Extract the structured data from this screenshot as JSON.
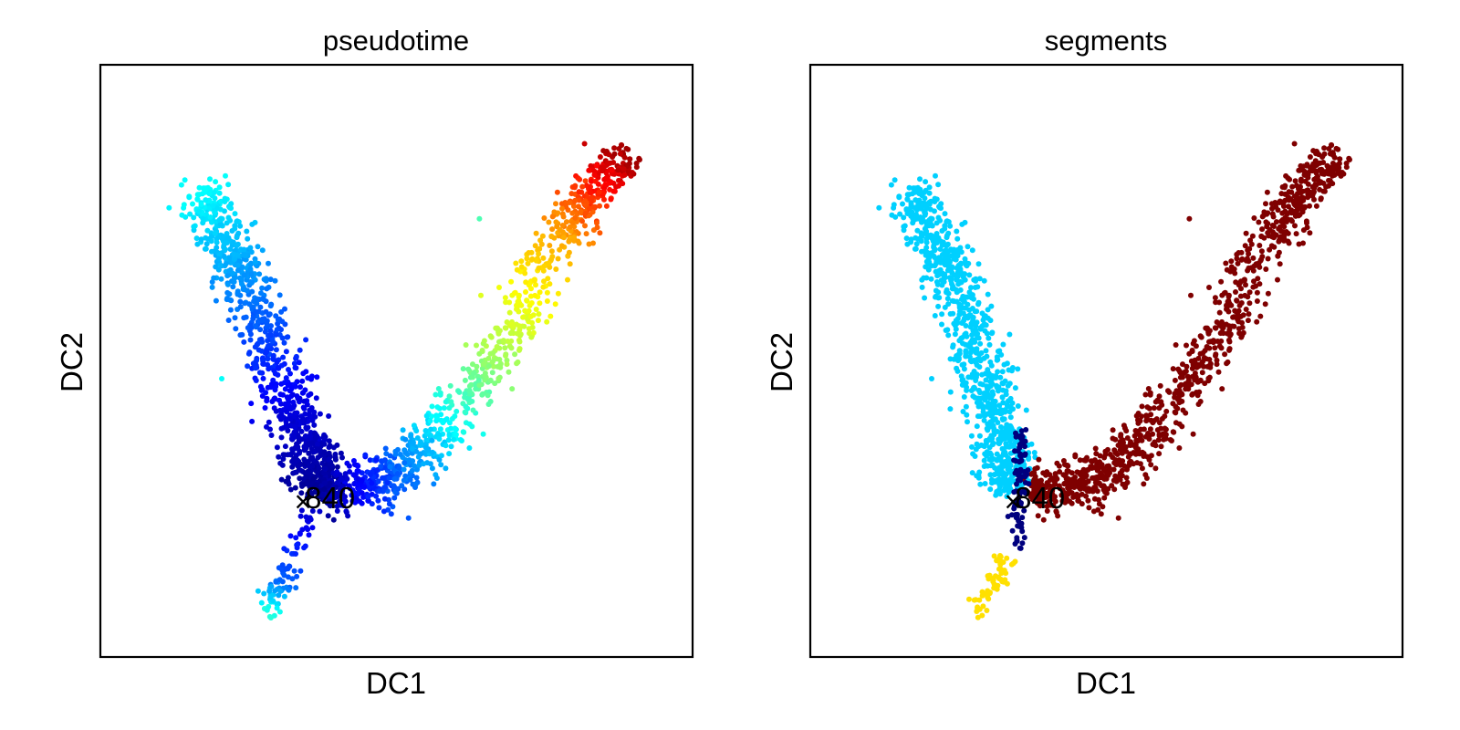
{
  "chart_data": [
    {
      "type": "scatter",
      "title": "pseudotime",
      "xlabel": "DC1",
      "ylabel": "DC2",
      "color_by": "pseudotime",
      "colormap": "jet",
      "grid": false,
      "legend": "none",
      "ticks": "none",
      "xlim": [
        0,
        1
      ],
      "ylim": [
        0,
        1
      ],
      "annotation": {
        "text": "840",
        "marker": "x",
        "x": 0.37,
        "y": 0.27
      },
      "branches": [
        {
          "name": "left-arm",
          "path": [
            [
              0.17,
              0.79
            ],
            [
              0.24,
              0.64
            ],
            [
              0.33,
              0.41
            ],
            [
              0.37,
              0.28
            ]
          ],
          "pseudotime": [
            0.38,
            0.27,
            0.09,
            0.02
          ],
          "n": 900,
          "spread": 0.022
        },
        {
          "name": "right-arm",
          "path": [
            [
              0.37,
              0.28
            ],
            [
              0.5,
              0.3
            ],
            [
              0.66,
              0.49
            ],
            [
              0.78,
              0.72
            ],
            [
              0.89,
              0.85
            ]
          ],
          "pseudotime": [
            0.02,
            0.22,
            0.52,
            0.72,
            0.97
          ],
          "n": 1000,
          "spread": 0.02
        },
        {
          "name": "bottom-arm",
          "path": [
            [
              0.36,
              0.26
            ],
            [
              0.31,
              0.13
            ],
            [
              0.28,
              0.07
            ]
          ],
          "pseudotime": [
            0.06,
            0.22,
            0.42
          ],
          "n": 90,
          "spread": 0.01
        }
      ],
      "outliers": [
        {
          "x": 0.64,
          "y": 0.74,
          "pseudotime": 0.45
        },
        {
          "x": 0.205,
          "y": 0.47,
          "pseudotime": 0.38
        }
      ]
    },
    {
      "type": "scatter",
      "title": "segments",
      "xlabel": "DC1",
      "ylabel": "DC2",
      "color_by": "segments",
      "grid": false,
      "legend": "none",
      "ticks": "none",
      "xlim": [
        0,
        1
      ],
      "ylim": [
        0,
        1
      ],
      "annotation": {
        "text": "840",
        "marker": "x",
        "x": 0.37,
        "y": 0.27
      },
      "segment_colors": [
        "#00d0ff",
        "#7f0000",
        "#00007f",
        "#ffe000"
      ],
      "branches": [
        {
          "name": "left-arm",
          "path": [
            [
              0.17,
              0.79
            ],
            [
              0.24,
              0.64
            ],
            [
              0.31,
              0.43
            ],
            [
              0.335,
              0.28
            ]
          ],
          "segment": 0,
          "n": 900,
          "spread": 0.022
        },
        {
          "name": "right-arm",
          "path": [
            [
              0.37,
              0.28
            ],
            [
              0.5,
              0.3
            ],
            [
              0.66,
              0.49
            ],
            [
              0.78,
              0.72
            ],
            [
              0.89,
              0.85
            ]
          ],
          "segment": 1,
          "n": 1000,
          "spread": 0.02
        },
        {
          "name": "stem",
          "path": [
            [
              0.355,
              0.39
            ],
            [
              0.355,
              0.3
            ],
            [
              0.35,
              0.18
            ]
          ],
          "segment": 2,
          "n": 90,
          "spread": 0.006
        },
        {
          "name": "bottom-arm",
          "path": [
            [
              0.33,
              0.17
            ],
            [
              0.31,
              0.12
            ],
            [
              0.28,
              0.07
            ]
          ],
          "segment": 3,
          "n": 60,
          "spread": 0.008
        }
      ],
      "outliers": [
        {
          "x": 0.64,
          "y": 0.74,
          "segment": 1
        },
        {
          "x": 0.205,
          "y": 0.47,
          "segment": 0
        }
      ]
    }
  ]
}
